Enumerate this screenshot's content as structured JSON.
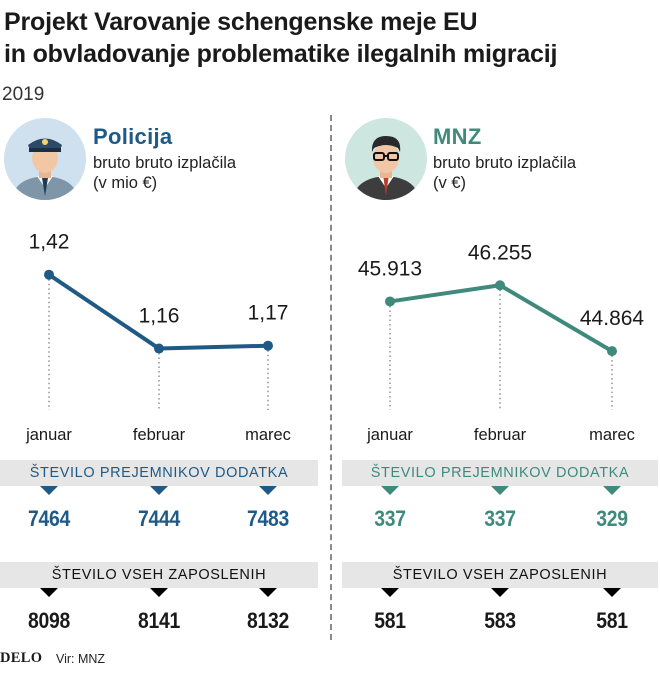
{
  "header": {
    "title_line1": "Projekt Varovanje schengenske meje EU",
    "title_line2": "in obvladovanje problematike ilegalnih migracij",
    "year": "2019"
  },
  "colors": {
    "policija": "#1f5a87",
    "mnz": "#3f8a7d",
    "band": "#e6e6e6",
    "text": "#1a1a1a"
  },
  "policija": {
    "title": "Policija",
    "subtitle_line1": "bruto bruto izplačila",
    "subtitle_line2": "(v mio €)",
    "icon": "police-officer-icon",
    "recipients_label": "ŠTEVILO PREJEMNIKOV DODATKA",
    "recipients": [
      "7464",
      "7444",
      "7483"
    ],
    "employees_label": "ŠTEVILO VSEH ZAPOSLENIH",
    "employees": [
      "8098",
      "8141",
      "8132"
    ]
  },
  "mnz": {
    "title": "MNZ",
    "subtitle_line1": "bruto bruto izplačila",
    "subtitle_line2": "(v €)",
    "icon": "civil-servant-icon",
    "recipients_label": "ŠTEVILO PREJEMNIKOV DODATKA",
    "recipients": [
      "337",
      "337",
      "329"
    ],
    "employees_label": "ŠTEVILO VSEH ZAPOSLENIH",
    "employees": [
      "581",
      "583",
      "581"
    ]
  },
  "footer": {
    "brand": "DELO",
    "source": "Vir: MNZ"
  },
  "chart_data": [
    {
      "type": "line",
      "title": "",
      "categories": [
        "januar",
        "februar",
        "marec"
      ],
      "series": [
        {
          "name": "",
          "values": [
            1.42,
            1.16,
            1.17
          ]
        }
      ],
      "data_labels": [
        "1,42",
        "1,16",
        "1,17"
      ],
      "ylim": [
        1.0,
        1.5
      ],
      "grid": false
    },
    {
      "type": "line",
      "title": "",
      "categories": [
        "januar",
        "februar",
        "marec"
      ],
      "series": [
        {
          "name": "",
          "values": [
            45913,
            46255,
            44864
          ]
        }
      ],
      "data_labels": [
        "45.913",
        "46.255",
        "44.864"
      ],
      "ylim": [
        44000,
        47000
      ],
      "grid": false
    }
  ]
}
